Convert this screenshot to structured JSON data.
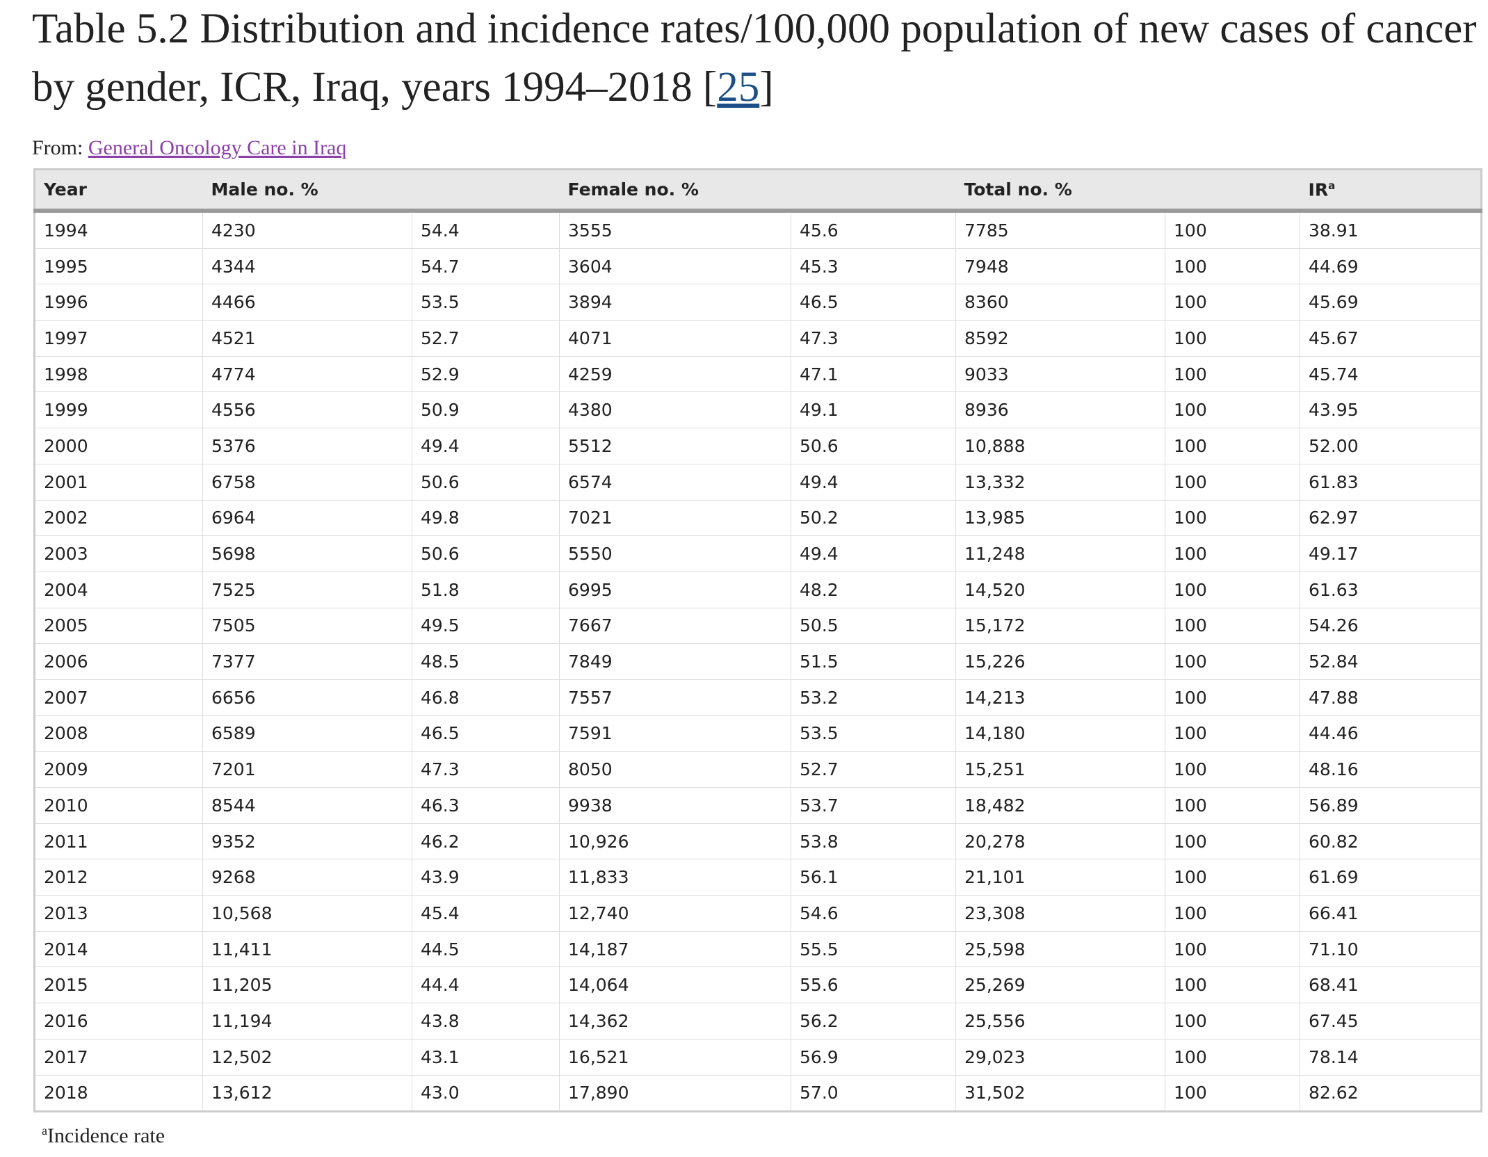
{
  "header": {
    "title": "Table 5.2 Distribution and incidence rates/100,000 population of new cases of cancer by gender, ICR, Iraq, years 1994–2018",
    "ref": "25",
    "from_label": "From:",
    "from_link": "General Oncology Care in Iraq"
  },
  "table": {
    "columns": [
      "Year",
      "Male no. %",
      "Female no. %",
      "Total no. %",
      "IR"
    ],
    "ir_sup": "a",
    "rows": [
      [
        "1994",
        "4230",
        "54.4",
        "3555",
        "45.6",
        "7785",
        "100",
        "38.91"
      ],
      [
        "1995",
        "4344",
        "54.7",
        "3604",
        "45.3",
        "7948",
        "100",
        "44.69"
      ],
      [
        "1996",
        "4466",
        "53.5",
        "3894",
        "46.5",
        "8360",
        "100",
        "45.69"
      ],
      [
        "1997",
        "4521",
        "52.7",
        "4071",
        "47.3",
        "8592",
        "100",
        "45.67"
      ],
      [
        "1998",
        "4774",
        "52.9",
        "4259",
        "47.1",
        "9033",
        "100",
        "45.74"
      ],
      [
        "1999",
        "4556",
        "50.9",
        "4380",
        "49.1",
        "8936",
        "100",
        "43.95"
      ],
      [
        "2000",
        "5376",
        "49.4",
        "5512",
        "50.6",
        "10,888",
        "100",
        "52.00"
      ],
      [
        "2001",
        "6758",
        "50.6",
        "6574",
        "49.4",
        "13,332",
        "100",
        "61.83"
      ],
      [
        "2002",
        "6964",
        "49.8",
        "7021",
        "50.2",
        "13,985",
        "100",
        "62.97"
      ],
      [
        "2003",
        "5698",
        "50.6",
        "5550",
        "49.4",
        "11,248",
        "100",
        "49.17"
      ],
      [
        "2004",
        "7525",
        "51.8",
        "6995",
        "48.2",
        "14,520",
        "100",
        "61.63"
      ],
      [
        "2005",
        "7505",
        "49.5",
        "7667",
        "50.5",
        "15,172",
        "100",
        "54.26"
      ],
      [
        "2006",
        "7377",
        "48.5",
        "7849",
        "51.5",
        "15,226",
        "100",
        "52.84"
      ],
      [
        "2007",
        "6656",
        "46.8",
        "7557",
        "53.2",
        "14,213",
        "100",
        "47.88"
      ],
      [
        "2008",
        "6589",
        "46.5",
        "7591",
        "53.5",
        "14,180",
        "100",
        "44.46"
      ],
      [
        "2009",
        "7201",
        "47.3",
        "8050",
        "52.7",
        "15,251",
        "100",
        "48.16"
      ],
      [
        "2010",
        "8544",
        "46.3",
        "9938",
        "53.7",
        "18,482",
        "100",
        "56.89"
      ],
      [
        "2011",
        "9352",
        "46.2",
        "10,926",
        "53.8",
        "20,278",
        "100",
        "60.82"
      ],
      [
        "2012",
        "9268",
        "43.9",
        "11,833",
        "56.1",
        "21,101",
        "100",
        "61.69"
      ],
      [
        "2013",
        "10,568",
        "45.4",
        "12,740",
        "54.6",
        "23,308",
        "100",
        "66.41"
      ],
      [
        "2014",
        "11,411",
        "44.5",
        "14,187",
        "55.5",
        "25,598",
        "100",
        "71.10"
      ],
      [
        "2015",
        "11,205",
        "44.4",
        "14,064",
        "55.6",
        "25,269",
        "100",
        "68.41"
      ],
      [
        "2016",
        "11,194",
        "43.8",
        "14,362",
        "56.2",
        "25,556",
        "100",
        "67.45"
      ],
      [
        "2017",
        "12,502",
        "43.1",
        "16,521",
        "56.9",
        "29,023",
        "100",
        "78.14"
      ],
      [
        "2018",
        "13,612",
        "43.0",
        "17,890",
        "57.0",
        "31,502",
        "100",
        "82.62"
      ]
    ]
  },
  "footnote": {
    "sup": "a",
    "text": "Incidence rate"
  }
}
